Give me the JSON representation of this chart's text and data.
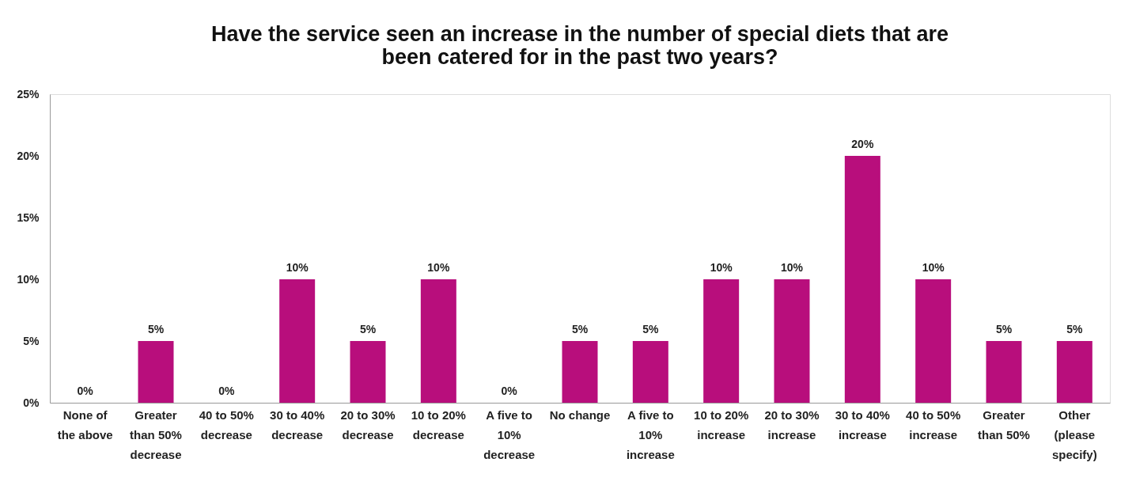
{
  "chart_data": {
    "type": "bar",
    "title": "Have the service seen an increase in the number of special diets that are been catered for in the past two years?",
    "categories": [
      "None of the above",
      "Greater than 50% decrease",
      "40 to 50% decrease",
      "30 to 40% decrease",
      "20 to 30% decrease",
      "10 to 20% decrease",
      "A five to 10% decrease",
      "No change",
      "A five to 10% increase",
      "10 to 20% increase",
      "20 to 30% increase",
      "30 to 40% increase",
      "40 to 50% increase",
      "Greater than 50%",
      "Other (please specify)"
    ],
    "values": [
      0,
      5,
      0,
      10,
      5,
      10,
      0,
      5,
      5,
      10,
      10,
      20,
      10,
      5,
      5
    ],
    "value_labels": [
      "0%",
      "5%",
      "0%",
      "10%",
      "5%",
      "10%",
      "0%",
      "5%",
      "5%",
      "10%",
      "10%",
      "20%",
      "10%",
      "5%",
      "5%"
    ],
    "color": "#b80e7c",
    "ylim": [
      0,
      25
    ],
    "yticks": [
      {
        "value": 0,
        "label": "0%"
      },
      {
        "value": 5,
        "label": "5%"
      },
      {
        "value": 10,
        "label": "10%"
      },
      {
        "value": 15,
        "label": "15%"
      },
      {
        "value": 20,
        "label": "20%"
      },
      {
        "value": 25,
        "label": "25%"
      }
    ],
    "grid": false
  }
}
